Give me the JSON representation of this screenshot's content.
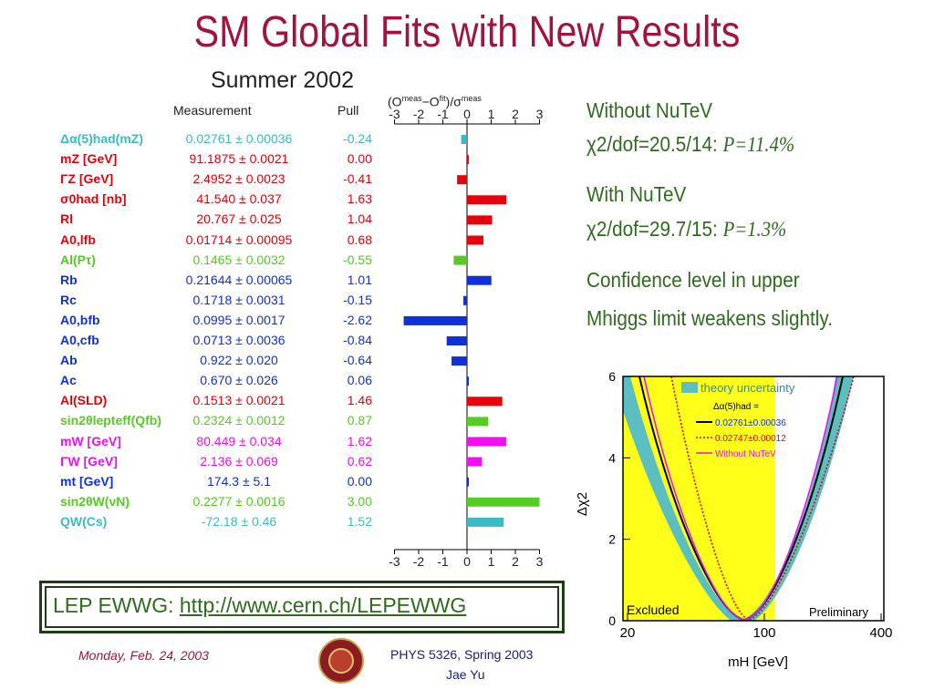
{
  "title": "SM Global Fits with New Results",
  "pull_figure": {
    "title": "Summer 2002",
    "col_measurement": "Measurement",
    "col_pull": "Pull",
    "axis_title": "(O",
    "axis_ticks": [
      "-3",
      "-2",
      "-1",
      "0",
      "1",
      "2",
      "3"
    ],
    "rows": [
      {
        "name": "Δα(5)had(mZ)",
        "value": "0.02761 ± 0.00036",
        "pull": "-0.24",
        "pull_num": -0.24,
        "color": "#3bbcc4"
      },
      {
        "name": "mZ [GeV]",
        "value": "91.1875 ± 0.0021",
        "pull": "0.00",
        "pull_num": 0.0,
        "color": "#e8000b"
      },
      {
        "name": "ΓZ [GeV]",
        "value": "2.4952 ± 0.0023",
        "pull": "-0.41",
        "pull_num": -0.41,
        "color": "#e8000b"
      },
      {
        "name": "σ0had [nb]",
        "value": "41.540 ± 0.037",
        "pull": "1.63",
        "pull_num": 1.63,
        "color": "#e8000b"
      },
      {
        "name": "Rl",
        "value": "20.767 ± 0.025",
        "pull": "1.04",
        "pull_num": 1.04,
        "color": "#e8000b"
      },
      {
        "name": "A0,lfb",
        "value": "0.01714 ± 0.00095",
        "pull": "0.68",
        "pull_num": 0.68,
        "color": "#e8000b"
      },
      {
        "name": "Al(Pτ)",
        "value": "0.1465 ± 0.0032",
        "pull": "-0.55",
        "pull_num": -0.55,
        "color": "#55cc22"
      },
      {
        "name": "Rb",
        "value": "0.21644 ± 0.00065",
        "pull": "1.01",
        "pull_num": 1.01,
        "color": "#1030d8"
      },
      {
        "name": "Rc",
        "value": "0.1718 ± 0.0031",
        "pull": "-0.15",
        "pull_num": -0.15,
        "color": "#1030d8"
      },
      {
        "name": "A0,bfb",
        "value": "0.0995 ± 0.0017",
        "pull": "-2.62",
        "pull_num": -2.62,
        "color": "#1030d8"
      },
      {
        "name": "A0,cfb",
        "value": "0.0713 ± 0.0036",
        "pull": "-0.84",
        "pull_num": -0.84,
        "color": "#1030d8"
      },
      {
        "name": "Ab",
        "value": "0.922 ± 0.020",
        "pull": "-0.64",
        "pull_num": -0.64,
        "color": "#1030d8"
      },
      {
        "name": "Ac",
        "value": "0.670 ± 0.026",
        "pull": "0.06",
        "pull_num": 0.06,
        "color": "#1030d8"
      },
      {
        "name": "Al(SLD)",
        "value": "0.1513 ± 0.0021",
        "pull": "1.46",
        "pull_num": 1.46,
        "color": "#e8000b"
      },
      {
        "name": "sin2θlepteff(Qfb)",
        "value": "0.2324 ± 0.0012",
        "pull": "0.87",
        "pull_num": 0.87,
        "color": "#55cc22"
      },
      {
        "name": "mW [GeV]",
        "value": "80.449 ± 0.034",
        "pull": "1.62",
        "pull_num": 1.62,
        "color": "#ee11ee"
      },
      {
        "name": "ΓW [GeV]",
        "value": "2.136 ± 0.069",
        "pull": "0.62",
        "pull_num": 0.62,
        "color": "#ee11ee"
      },
      {
        "name": "mt [GeV]",
        "value": "174.3 ± 5.1",
        "pull": "0.00",
        "pull_num": 0.0,
        "color": "#1030d8"
      },
      {
        "name": "sin2θW(νN)",
        "value": "0.2277 ± 0.0016",
        "pull": "3.00",
        "pull_num": 3.0,
        "color": "#55cc22"
      },
      {
        "name": "QW(Cs)",
        "value": "-72.18 ± 0.46",
        "pull": "1.52",
        "pull_num": 1.52,
        "color": "#3bbcc4"
      }
    ]
  },
  "notes": {
    "without_label": "Without NuTeV",
    "without_chi": "χ2/dof=20.5/14:",
    "without_p": "P=11.4%",
    "with_label": "With NuTeV",
    "with_chi": "χ2/dof=29.7/15:",
    "with_p": "P=1.3%",
    "confidence_1": "Confidence level in upper",
    "confidence_2": "Mhiggs limit weakens slightly."
  },
  "chi2_plot": {
    "y_ticks": [
      "0",
      "2",
      "4",
      "6"
    ],
    "x_ticks": [
      "20",
      "100",
      "400"
    ],
    "xlabel": "mH [GeV]",
    "ylabel": "Δχ2",
    "legend_band": "theory uncertainty",
    "legend_head": "Δα(5)had =",
    "legend_1": "0.02761±0.00036",
    "legend_2": "0.02747±0.00012",
    "legend_3": "Without NuTeV",
    "excluded": "Excluded",
    "preliminary": "Preliminary"
  },
  "lep_box": {
    "prefix": "LEP EWWG:",
    "link": "http://www.cern.ch/LEPEWWG"
  },
  "footer": {
    "date": "Monday, Feb. 24, 2003",
    "course": "PHYS 5326, Spring 2003",
    "author": "Jae Yu"
  },
  "colors": {
    "title": "#a0153e",
    "note_text": "#2f6b1e",
    "footer_date": "#a0153e",
    "footer_course": "#1a1a8c"
  }
}
